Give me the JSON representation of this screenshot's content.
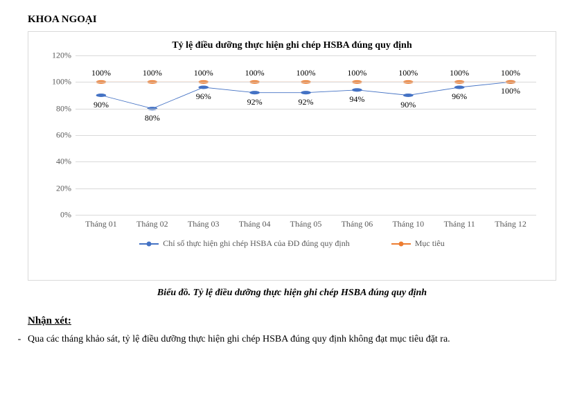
{
  "section_title": "KHOA NGOẠI",
  "chart": {
    "type": "line",
    "title": "Tỷ lệ điều dưỡng thực hiện ghi chép HSBA đúng quy định",
    "title_fontsize": 14,
    "background_color": "#ffffff",
    "border_color": "#d9d9d9",
    "grid_color": "#d9d9d9",
    "axis_label_color": "#595959",
    "label_fontsize": 12,
    "ylim": [
      0,
      120
    ],
    "yticks": [
      0,
      20,
      40,
      60,
      80,
      100,
      120
    ],
    "ytick_labels": [
      "0%",
      "20%",
      "40%",
      "60%",
      "80%",
      "100%",
      "120%"
    ],
    "categories": [
      "Tháng 01",
      "Tháng 02",
      "Tháng 03",
      "Tháng 04",
      "Tháng 05",
      "Tháng 06",
      "Tháng 10",
      "Tháng 11",
      "Tháng 12"
    ],
    "series": [
      {
        "name": "Chỉ số thực hiện ghi chép HSBA của ĐD đúng quy định",
        "color": "#4472c4",
        "marker": "circle",
        "marker_size": 6,
        "line_width": 2,
        "values": [
          90,
          80,
          96,
          92,
          92,
          94,
          90,
          96,
          100
        ],
        "data_labels": [
          "90%",
          "80%",
          "96%",
          "92%",
          "92%",
          "94%",
          "90%",
          "96%",
          "100%"
        ],
        "label_position": "below"
      },
      {
        "name": "Mục tiêu",
        "color": "#ed7d31",
        "marker": "circle",
        "marker_size": 6,
        "line_width": 2,
        "values": [
          100,
          100,
          100,
          100,
          100,
          100,
          100,
          100,
          100
        ],
        "data_labels": [
          "100%",
          "100%",
          "100%",
          "100%",
          "100%",
          "100%",
          "100%",
          "100%",
          "100%"
        ],
        "label_position": "above"
      }
    ],
    "legend_position": "bottom"
  },
  "caption": "Biểu đồ. Tỷ lệ điều dưỡng thực hiện ghi chép HSBA đúng quy định",
  "comment_heading": "Nhận xét:",
  "comment_bullet": "Qua các tháng khảo sát, tỷ lệ điều dưỡng thực hiện ghi chép HSBA đúng quy định không đạt mục tiêu đặt ra."
}
